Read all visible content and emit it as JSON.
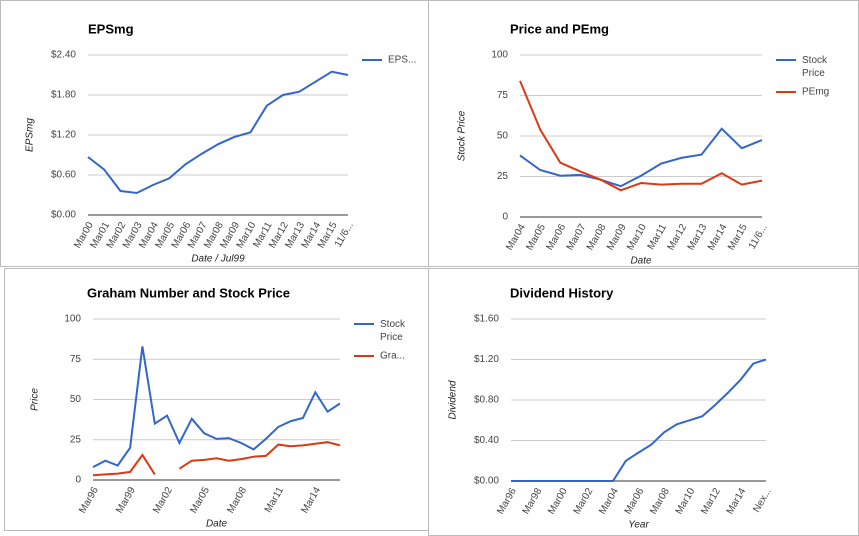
{
  "chart_data": [
    {
      "type": "line",
      "title": "EPSmg",
      "xlabel": "Date / Jul99",
      "ylabel": "EPSmg",
      "legend": "right",
      "grid": true,
      "categories": [
        "Mar00",
        "Mar01",
        "Mar02",
        "Mar03",
        "Mar04",
        "Mar05",
        "Mar06",
        "Mar07",
        "Mar08",
        "Mar09",
        "Mar10",
        "Mar11",
        "Mar12",
        "Mar13",
        "Mar14",
        "Mar15",
        "11/6..."
      ],
      "series": [
        {
          "name": "EPS...",
          "color": "#3366cc",
          "values": [
            0.87,
            0.68,
            0.36,
            0.33,
            0.45,
            0.55,
            0.76,
            0.92,
            1.06,
            1.17,
            1.24,
            1.64,
            1.8,
            1.85,
            2.0,
            2.15,
            2.1
          ]
        }
      ],
      "ylim": [
        0,
        2.4
      ],
      "yticks": [
        {
          "value": 0,
          "label": "$0.00"
        },
        {
          "value": 0.6,
          "label": "$0.60"
        },
        {
          "value": 1.2,
          "label": "$1.20"
        },
        {
          "value": 1.8,
          "label": "$1.80"
        },
        {
          "value": 2.4,
          "label": "$2.40"
        }
      ]
    },
    {
      "type": "line",
      "title": "Price and PEmg",
      "xlabel": "Date",
      "ylabel": "Stock Price",
      "legend": "right",
      "grid": true,
      "categories": [
        "Mar04",
        "Mar05",
        "Mar06",
        "Mar07",
        "Mar08",
        "Mar09",
        "Mar10",
        "Mar11",
        "Mar12",
        "Mar13",
        "Mar14",
        "Mar15",
        "11/6..."
      ],
      "series": [
        {
          "name": "Stock Price",
          "color": "#3366cc",
          "values": [
            38,
            29,
            25.5,
            26,
            23,
            19,
            25.5,
            33,
            36.5,
            38.5,
            54.5,
            42.5,
            47.5
          ]
        },
        {
          "name": "PEmg",
          "color": "#dc3912",
          "values": [
            84,
            54,
            33.5,
            28,
            23,
            16.5,
            21,
            20,
            20.5,
            20.5,
            27,
            20,
            22.5
          ]
        }
      ],
      "ylim": [
        0,
        100
      ],
      "yticks": [
        0,
        25,
        50,
        75,
        100
      ]
    },
    {
      "type": "line",
      "title": "Graham Number and Stock Price",
      "xlabel": "Date",
      "ylabel": "Price",
      "legend": "right",
      "grid": true,
      "categories": [
        "Mar96",
        null,
        null,
        "Mar99",
        null,
        null,
        "Mar02",
        null,
        null,
        "Mar05",
        null,
        null,
        "Mar08",
        null,
        null,
        "Mar11",
        null,
        null,
        "Mar14",
        null,
        null
      ],
      "series": [
        {
          "name": "Stock Price",
          "color": "#3366cc",
          "values": [
            8,
            12,
            9,
            20,
            83,
            35,
            40,
            23,
            38,
            29,
            25.5,
            26,
            23,
            19,
            25.5,
            33,
            36.5,
            38.5,
            54.5,
            42.5,
            47.5
          ]
        },
        {
          "name": "Gra...",
          "color": "#dc3912",
          "values": [
            3,
            3.5,
            4,
            5,
            15.5,
            3.5,
            null,
            7,
            12,
            12.5,
            13.5,
            12,
            13,
            14.5,
            15,
            22,
            21,
            21.5,
            22.5,
            23.5,
            21.5
          ]
        }
      ],
      "ylim": [
        0,
        100
      ],
      "yticks": [
        0,
        25,
        50,
        75,
        100
      ]
    },
    {
      "type": "line",
      "title": "Dividend History",
      "xlabel": "Year",
      "ylabel": "Dividend",
      "grid": true,
      "categories": [
        "Mar96",
        null,
        "Mar98",
        null,
        "Mar00",
        null,
        "Mar02",
        null,
        "Mar04",
        null,
        "Mar06",
        null,
        "Mar08",
        null,
        "Mar10",
        null,
        "Mar12",
        null,
        "Mar14",
        null,
        "Nex..."
      ],
      "series": [
        {
          "name": "Dividend",
          "color": "#3366cc",
          "values": [
            0,
            0,
            0,
            0,
            0,
            0,
            0,
            0,
            0,
            0.2,
            0.28,
            0.36,
            0.48,
            0.56,
            0.6,
            0.64,
            0.75,
            0.87,
            1.0,
            1.16,
            1.2
          ]
        }
      ],
      "ylim": [
        0,
        1.6
      ],
      "yticks": [
        {
          "value": 0,
          "label": "$0.00"
        },
        {
          "value": 0.4,
          "label": "$0.40"
        },
        {
          "value": 0.8,
          "label": "$0.80"
        },
        {
          "value": 1.2,
          "label": "$1.20"
        },
        {
          "value": 1.6,
          "label": "$1.60"
        }
      ]
    }
  ]
}
